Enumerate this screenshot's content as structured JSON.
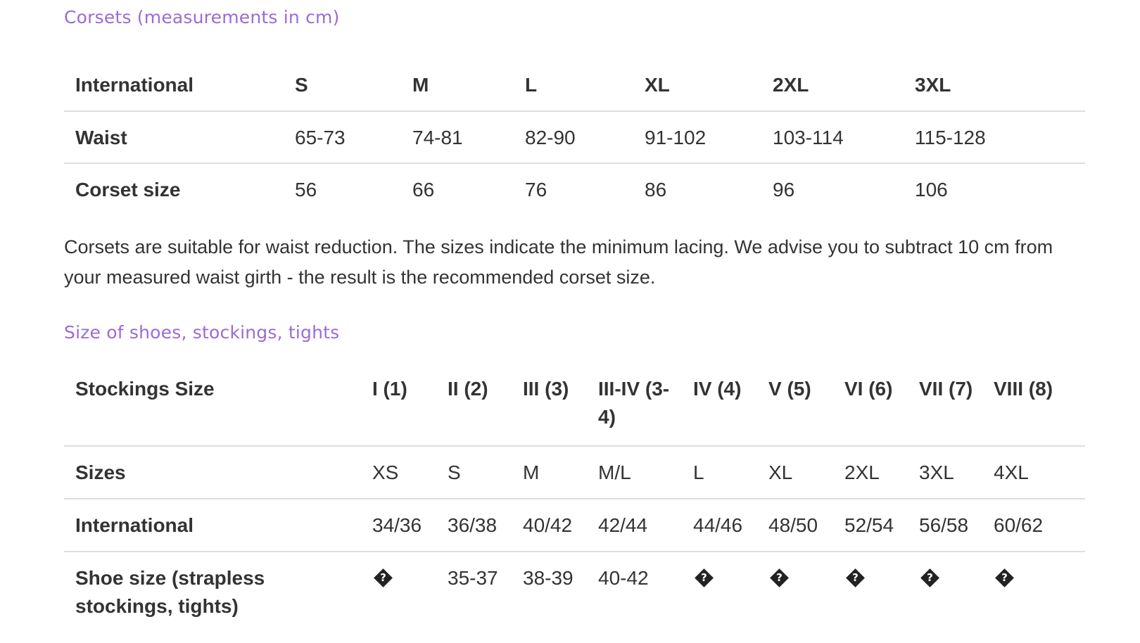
{
  "corsets": {
    "title": "Corsets (measurements in cm)",
    "header": [
      "International",
      "S",
      "M",
      "L",
      "XL",
      "2XL",
      "3XL"
    ],
    "rows": [
      [
        "Waist",
        "65-73",
        "74-81",
        "82-90",
        "91-102",
        "103-114",
        "115-128"
      ],
      [
        "Corset size",
        "56",
        "66",
        "76",
        "86",
        "96",
        "106"
      ]
    ],
    "note": "Corsets are suitable for waist reduction. The sizes indicate the minimum lacing. We advise you to subtract 10 cm from your measured waist girth - the result is the recommended corset size."
  },
  "stockings": {
    "title": "Size of shoes, stockings, tights",
    "header": [
      "Stockings Size",
      "I (1)",
      "II (2)",
      "III (3)",
      "III-IV (3-4)",
      "IV (4)",
      "V (5)",
      "VI (6)",
      "VII (7)",
      "VIII (8)"
    ],
    "rows": [
      [
        "Sizes",
        "XS",
        "S",
        "M",
        "M/L",
        "L",
        "XL",
        "2XL",
        "3XL",
        "4XL"
      ],
      [
        "International",
        "34/36",
        "36/38",
        "40/42",
        "42/44",
        "44/46",
        "48/50",
        "52/54",
        "56/58",
        "60/62"
      ],
      [
        "Shoe size (strapless stockings, tights)",
        "",
        "35-37",
        "38-39",
        "40-42",
        "",
        "",
        "",
        "",
        ""
      ]
    ],
    "missing_glyph_icon": "replacement-character-icon"
  }
}
